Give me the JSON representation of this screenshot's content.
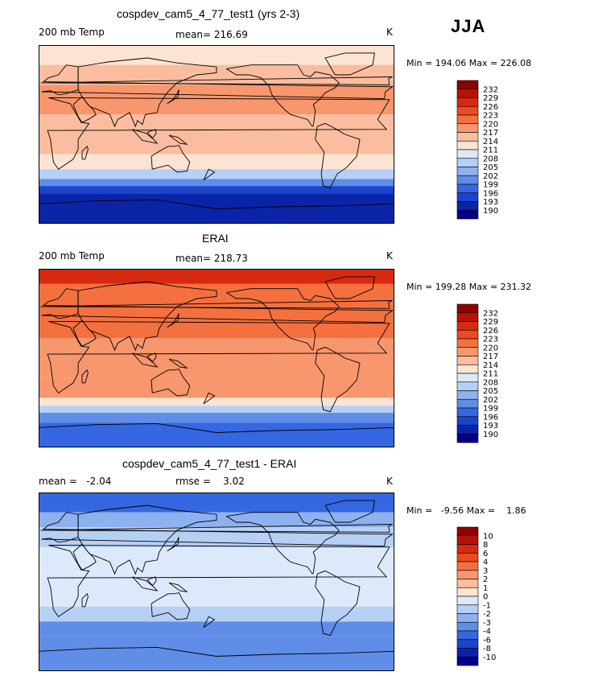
{
  "season": "JJA",
  "chart_data": [
    {
      "type": "heatmap",
      "title": "cospdev_cam5_4_77_test1 (yrs 2-3)",
      "left_label": "200 mb Temp",
      "center_label": "mean= 216.69",
      "units": "K",
      "min_max": "Min = 194.06 Max = 226.08",
      "legend": {
        "levels": [
          "232",
          "229",
          "226",
          "223",
          "220",
          "217",
          "214",
          "211",
          "208",
          "205",
          "202",
          "199",
          "196",
          "193",
          "190"
        ],
        "colors": [
          "#900000",
          "#b5120a",
          "#d62a10",
          "#ec4b1e",
          "#f5703f",
          "#f8966d",
          "#fbbd9f",
          "#fde3d1",
          "#dce9fb",
          "#b6cff5",
          "#8eb1ef",
          "#5f8de8",
          "#3567e0",
          "#1a44cc",
          "#0a24a8",
          "#00008b"
        ]
      },
      "bands": [
        {
          "lat_top": 90,
          "lat_bottom": 70,
          "level": 211
        },
        {
          "lat_top": 70,
          "lat_bottom": 50,
          "level": 214
        },
        {
          "lat_top": 50,
          "lat_bottom": 20,
          "level": 217
        },
        {
          "lat_top": 20,
          "lat_bottom": -20,
          "level": 214
        },
        {
          "lat_top": -20,
          "lat_bottom": -35,
          "level": 211
        },
        {
          "lat_top": -35,
          "lat_bottom": -45,
          "level": 205
        },
        {
          "lat_top": -45,
          "lat_bottom": -52,
          "level": 199
        },
        {
          "lat_top": -52,
          "lat_bottom": -60,
          "level": 193
        },
        {
          "lat_top": -60,
          "lat_bottom": -90,
          "level": 190
        }
      ]
    },
    {
      "type": "heatmap",
      "title": "ERAI",
      "left_label": "200 mb Temp",
      "center_label": "mean= 218.73",
      "units": "K",
      "min_max": "Min = 199.28 Max = 231.32",
      "legend": {
        "levels": [
          "232",
          "229",
          "226",
          "223",
          "220",
          "217",
          "214",
          "211",
          "208",
          "205",
          "202",
          "199",
          "196",
          "193",
          "190"
        ],
        "colors": [
          "#900000",
          "#b5120a",
          "#d62a10",
          "#ec4b1e",
          "#f5703f",
          "#f8966d",
          "#fbbd9f",
          "#fde3d1",
          "#dce9fb",
          "#b6cff5",
          "#8eb1ef",
          "#5f8de8",
          "#3567e0",
          "#1a44cc",
          "#0a24a8",
          "#00008b"
        ]
      },
      "bands": [
        {
          "lat_top": 90,
          "lat_bottom": 75,
          "level": 226
        },
        {
          "lat_top": 75,
          "lat_bottom": 60,
          "level": 220
        },
        {
          "lat_top": 60,
          "lat_bottom": 20,
          "level": 220
        },
        {
          "lat_top": 20,
          "lat_bottom": -20,
          "level": 217
        },
        {
          "lat_top": -20,
          "lat_bottom": -40,
          "level": 217
        },
        {
          "lat_top": -40,
          "lat_bottom": -48,
          "level": 211
        },
        {
          "lat_top": -48,
          "lat_bottom": -55,
          "level": 205
        },
        {
          "lat_top": -55,
          "lat_bottom": -65,
          "level": 199
        },
        {
          "lat_top": -65,
          "lat_bottom": -90,
          "level": 196
        }
      ]
    },
    {
      "type": "heatmap",
      "title": "cospdev_cam5_4_77_test1 - ERAI",
      "left_label": "mean =   -2.04",
      "center_label": "rmse =    3.02",
      "units": "K",
      "min_max": "Min =   -9.56 Max =    1.86",
      "legend": {
        "levels": [
          "10",
          "8",
          "6",
          "4",
          "3",
          "2",
          "1",
          "0",
          "-1",
          "-2",
          "-3",
          "-4",
          "-6",
          "-8",
          "-10"
        ],
        "colors": [
          "#900000",
          "#b5120a",
          "#d62a10",
          "#ec4b1e",
          "#f5703f",
          "#f8966d",
          "#fbbd9f",
          "#fde3d1",
          "#dce9fb",
          "#b6cff5",
          "#8eb1ef",
          "#5f8de8",
          "#3567e0",
          "#1a44cc",
          "#0a24a8",
          "#00008b"
        ]
      },
      "bands": [
        {
          "lat_top": 90,
          "lat_bottom": 70,
          "level": -6
        },
        {
          "lat_top": 70,
          "lat_bottom": 55,
          "level": -3
        },
        {
          "lat_top": 55,
          "lat_bottom": 35,
          "level": -2
        },
        {
          "lat_top": 35,
          "lat_bottom": 10,
          "level": -1
        },
        {
          "lat_top": 10,
          "lat_bottom": -25,
          "level": -1
        },
        {
          "lat_top": -25,
          "lat_bottom": -40,
          "level": -2
        },
        {
          "lat_top": -40,
          "lat_bottom": -55,
          "level": -4
        },
        {
          "lat_top": -55,
          "lat_bottom": -90,
          "level": -4
        }
      ]
    }
  ]
}
